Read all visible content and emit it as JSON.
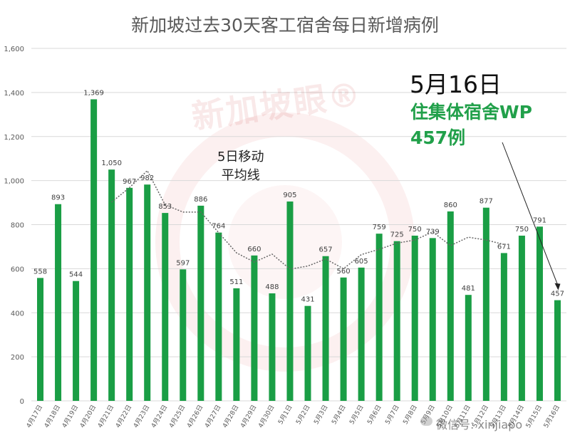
{
  "chart_data": {
    "type": "bar",
    "title": "新加坡过去30天客工宿舍每日新增病例",
    "categories": [
      "4月17日",
      "4月18日",
      "4月19日",
      "4月20日",
      "4月21日",
      "4月22日",
      "4月23日",
      "4月24日",
      "4月25日",
      "4月26日",
      "4月27日",
      "4月28日",
      "4月29日",
      "4月30日",
      "5月1日",
      "5月2日",
      "5月3日",
      "5月4日",
      "5月5日",
      "5月6日",
      "5月7日",
      "5月8日",
      "5月9日",
      "5月10日",
      "5月11日",
      "5月12日",
      "5月13日",
      "5月14日",
      "5月15日",
      "5月16日"
    ],
    "values": [
      558,
      893,
      544,
      1369,
      1050,
      967,
      982,
      853,
      597,
      886,
      764,
      511,
      660,
      488,
      905,
      431,
      657,
      560,
      605,
      759,
      725,
      750,
      739,
      860,
      481,
      877,
      671,
      750,
      791,
      457
    ],
    "value_labels": [
      "558",
      "893",
      "544",
      "1,369",
      "1,050",
      "967",
      "982",
      "853",
      "597",
      "886",
      "764",
      "511",
      "660",
      "488",
      "905",
      "431",
      "657",
      "560",
      "605",
      "759",
      "725",
      "750",
      "739",
      "860",
      "481",
      "877",
      "671",
      "750",
      "791",
      "457"
    ],
    "moving_average": {
      "label": "5日移动\n平均线",
      "start_index": 4,
      "values": [
        902,
        968,
        1045,
        890,
        857,
        857,
        764,
        672,
        630,
        666,
        598,
        612,
        644,
        600,
        664,
        688,
        716,
        730,
        767,
        705,
        743,
        730,
        710
      ]
    },
    "ylim": [
      0,
      1600
    ],
    "yticks": [
      0,
      200,
      400,
      600,
      800,
      1000,
      1200,
      1400,
      1600
    ],
    "ytick_labels": [
      "0",
      "200",
      "400",
      "600",
      "800",
      "1,000",
      "1,200",
      "1,400",
      "1,600"
    ],
    "grid": true,
    "bar_color": "#1a9e45",
    "line_color": "#666666",
    "annotation": {
      "date": "5月16日",
      "lines": [
        "住集体宿舍WP",
        "457例"
      ],
      "color": "#21a04a"
    }
  },
  "watermark": {
    "text": "新加坡眼®"
  },
  "credit": {
    "text": "微信号: xinjiapo"
  }
}
